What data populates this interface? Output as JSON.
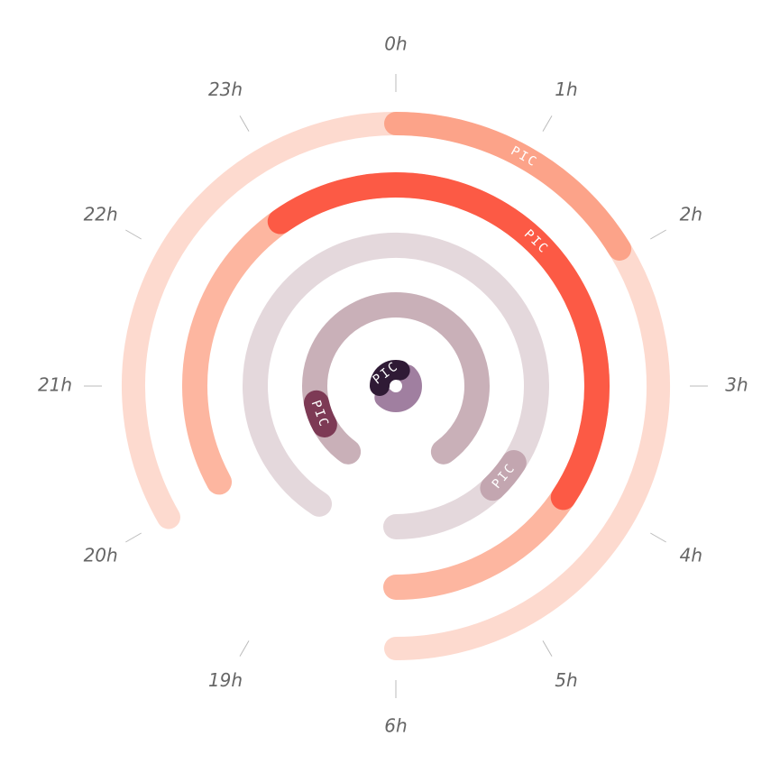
{
  "chart_data": {
    "type": "radial-clock",
    "hours": [
      {
        "value": 0,
        "label": "0h"
      },
      {
        "value": 1,
        "label": "1h"
      },
      {
        "value": 2,
        "label": "2h"
      },
      {
        "value": 3,
        "label": "3h"
      },
      {
        "value": 4,
        "label": "4h"
      },
      {
        "value": 5,
        "label": "5h"
      },
      {
        "value": 6,
        "label": "6h"
      },
      {
        "value": 19,
        "label": "19h"
      },
      {
        "value": 20,
        "label": "20h"
      },
      {
        "value": 21,
        "label": "21h"
      },
      {
        "value": 22,
        "label": "22h"
      },
      {
        "value": 23,
        "label": "23h"
      }
    ],
    "rings": [
      {
        "segments": [
          {
            "start": 20,
            "end": 6,
            "color": "#fddacf"
          },
          {
            "start": 0,
            "end": 1.95,
            "color": "#fca389",
            "label": "PIC"
          }
        ]
      },
      {
        "segments": [
          {
            "start": 20.05,
            "end": 6,
            "color": "#fdb6a0"
          },
          {
            "start": 22.83,
            "end": 4.12,
            "color": "#fc5a45",
            "label": "PIC"
          }
        ]
      },
      {
        "segments": [
          {
            "start": 19.1,
            "end": 6,
            "color": "#e4d8dc"
          },
          {
            "start": 4.1,
            "end": 4.55,
            "color": "#c3a6b0",
            "label": "PIC"
          }
        ]
      },
      {
        "segments": [
          {
            "start": 19.2,
            "end": 4.8,
            "color": "#c9b0b8"
          },
          {
            "start": 20.05,
            "end": 20.6,
            "color": "#7d3a55",
            "label": "PIC"
          }
        ]
      },
      {
        "segments": [
          {
            "start": 1.5,
            "end": 7.5,
            "color": "#a07fa0"
          },
          {
            "start": 21,
            "end": 0.5,
            "color": "#2f1a35",
            "label": "PIC"
          }
        ]
      }
    ]
  }
}
